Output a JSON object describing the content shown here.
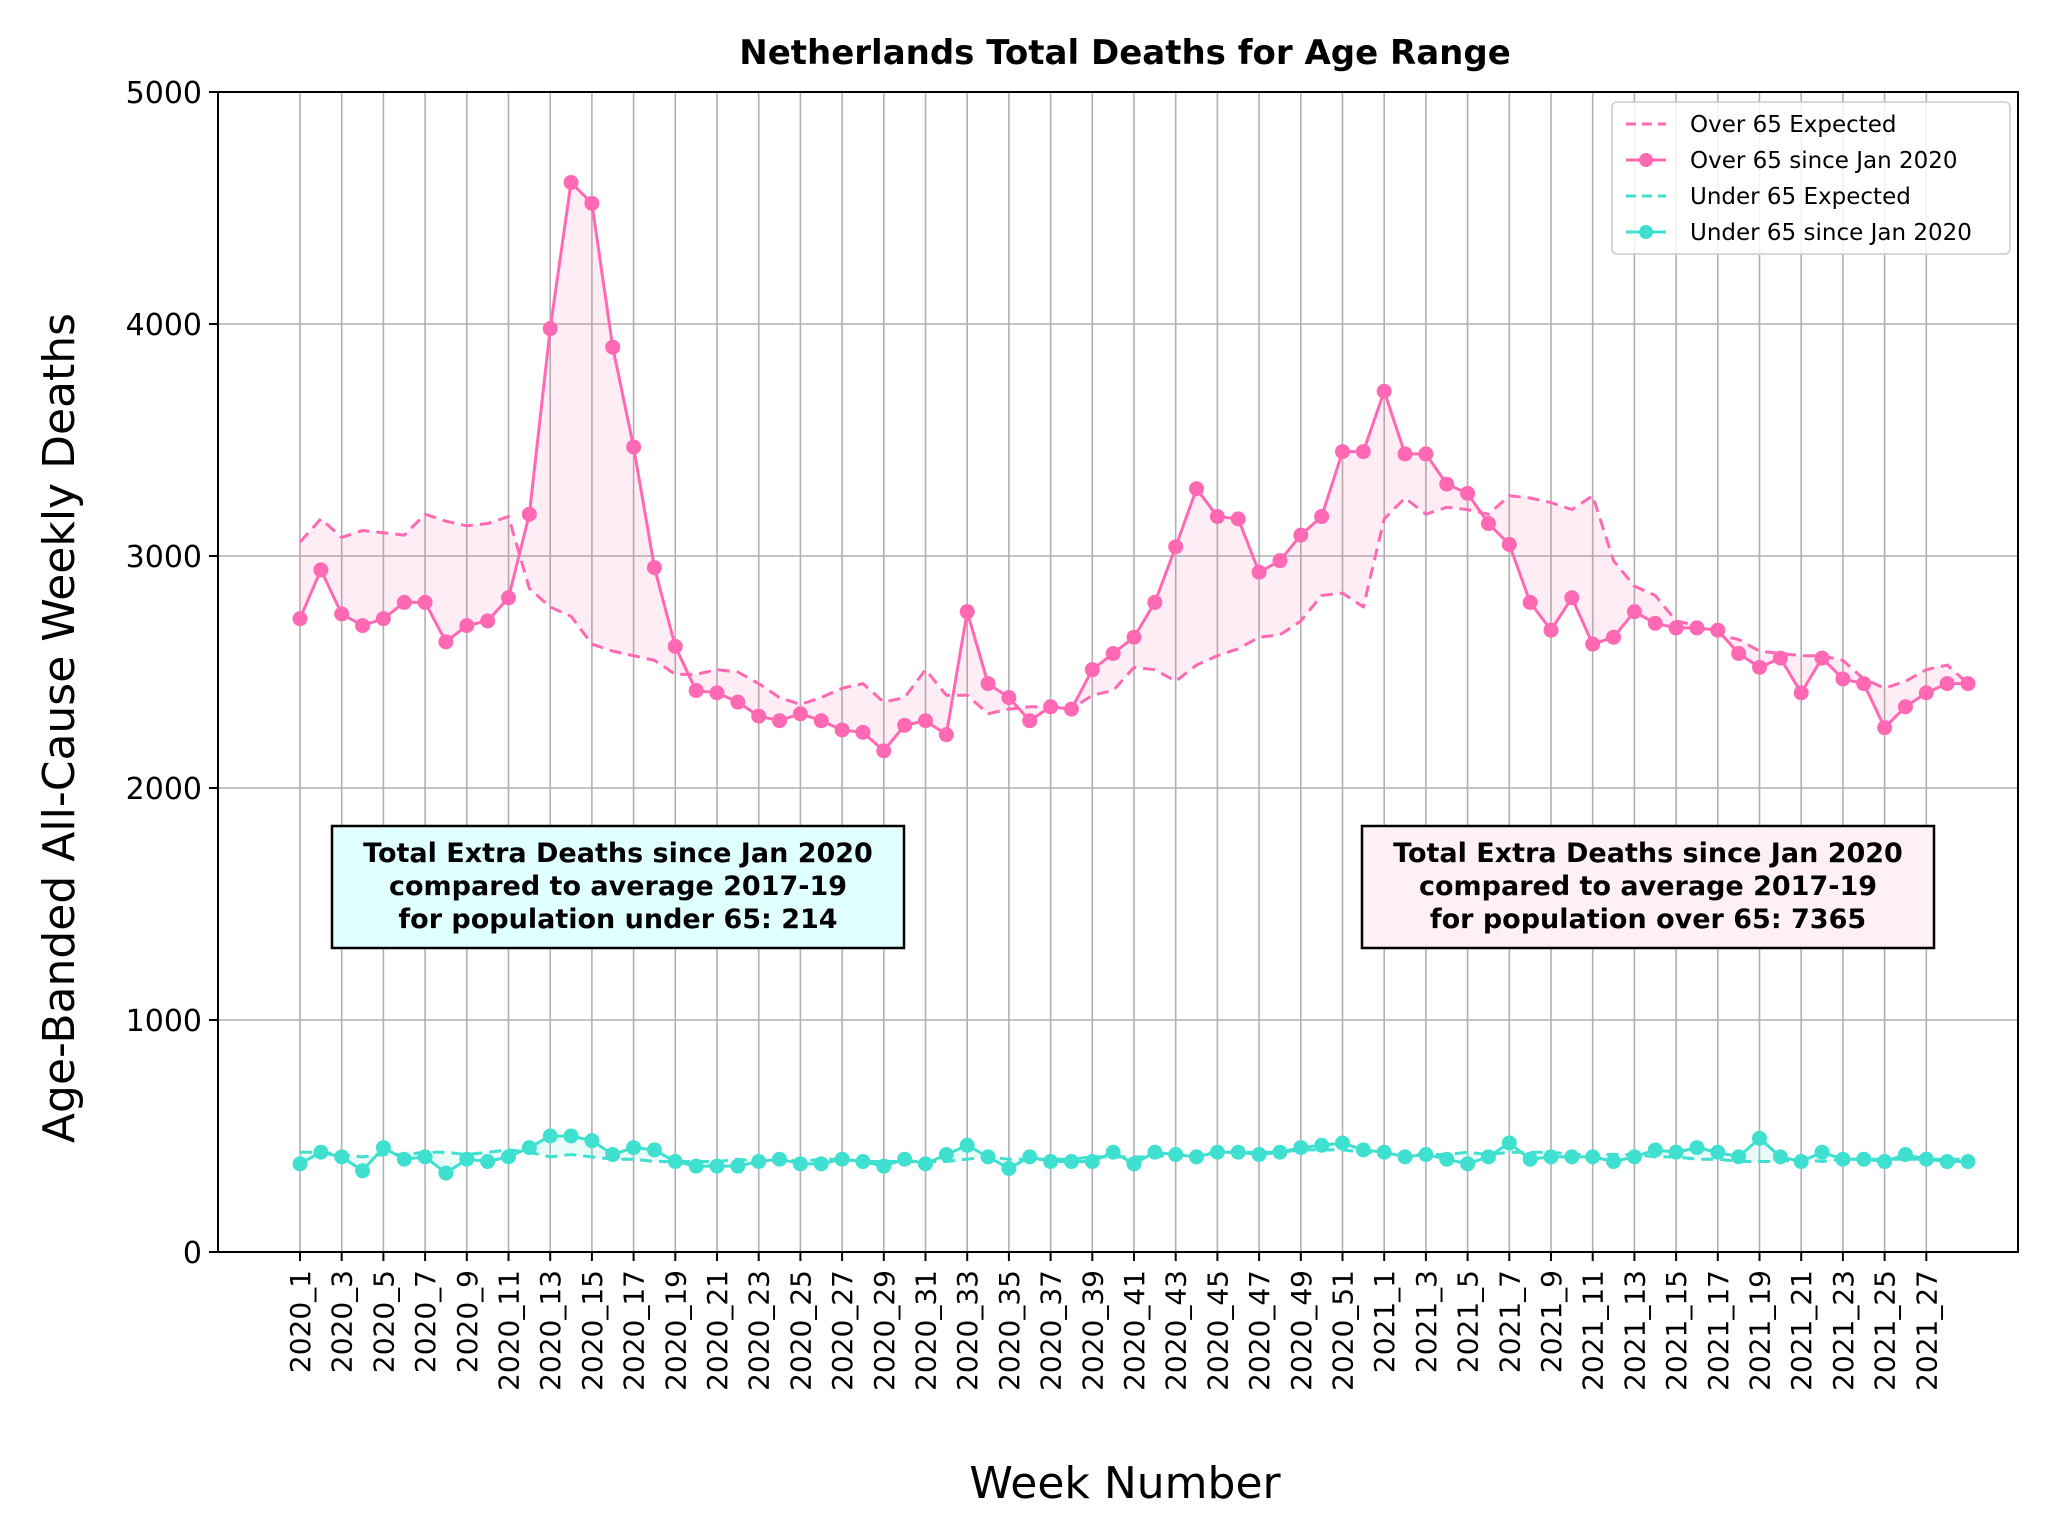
{
  "chart_data": {
    "type": "line",
    "title": "Netherlands Total Deaths for Age Range",
    "xlabel": "Week Number",
    "ylabel": "Age-Banded All-Cause Weekly Deaths",
    "ylim": [
      0,
      5000
    ],
    "yticks": [
      0,
      1000,
      2000,
      3000,
      4000,
      5000
    ],
    "grid": true,
    "legend_position": "top-right",
    "categories": [
      "2020_1",
      "2020_2",
      "2020_3",
      "2020_4",
      "2020_5",
      "2020_6",
      "2020_7",
      "2020_8",
      "2020_9",
      "2020_10",
      "2020_11",
      "2020_12",
      "2020_13",
      "2020_14",
      "2020_15",
      "2020_16",
      "2020_17",
      "2020_18",
      "2020_19",
      "2020_20",
      "2020_21",
      "2020_22",
      "2020_23",
      "2020_24",
      "2020_25",
      "2020_26",
      "2020_27",
      "2020_28",
      "2020_29",
      "2020_30",
      "2020_31",
      "2020_32",
      "2020_33",
      "2020_34",
      "2020_35",
      "2020_36",
      "2020_37",
      "2020_38",
      "2020_39",
      "2020_40",
      "2020_41",
      "2020_42",
      "2020_43",
      "2020_44",
      "2020_45",
      "2020_46",
      "2020_47",
      "2020_48",
      "2020_49",
      "2020_50",
      "2020_51",
      "2020_52",
      "2021_1",
      "2021_2",
      "2021_3",
      "2021_4",
      "2021_5",
      "2021_6",
      "2021_7",
      "2021_8",
      "2021_9",
      "2021_10",
      "2021_11",
      "2021_12",
      "2021_13",
      "2021_14",
      "2021_15",
      "2021_16",
      "2021_17",
      "2021_18",
      "2021_19",
      "2021_20",
      "2021_21",
      "2021_22",
      "2021_23",
      "2021_24",
      "2021_25",
      "2021_26",
      "2021_27",
      "2021_28",
      "2021_29"
    ],
    "xtick_labels": [
      "2020_1",
      "2020_3",
      "2020_5",
      "2020_7",
      "2020_9",
      "2020_11",
      "2020_13",
      "2020_15",
      "2020_17",
      "2020_19",
      "2020_21",
      "2020_23",
      "2020_25",
      "2020_27",
      "2020_29",
      "2020_31",
      "2020_33",
      "2020_35",
      "2020_37",
      "2020_39",
      "2020_41",
      "2020_43",
      "2020_45",
      "2020_47",
      "2020_49",
      "2020_51",
      "2021_1",
      "2021_3",
      "2021_5",
      "2021_7",
      "2021_9",
      "2021_11",
      "2021_13",
      "2021_15",
      "2021_17",
      "2021_19",
      "2021_21",
      "2021_23",
      "2021_25",
      "2021_27"
    ],
    "series": [
      {
        "name": "Over 65 Expected",
        "color": "#ff69b4",
        "style": "dashed",
        "values": [
          3060,
          3160,
          3080,
          3110,
          3100,
          3090,
          3180,
          3150,
          3130,
          3140,
          3170,
          2860,
          2780,
          2740,
          2620,
          2590,
          2570,
          2550,
          2490,
          2490,
          2510,
          2500,
          2450,
          2390,
          2360,
          2390,
          2430,
          2450,
          2370,
          2390,
          2510,
          2400,
          2400,
          2320,
          2340,
          2350,
          2350,
          2340,
          2400,
          2420,
          2520,
          2510,
          2460,
          2530,
          2570,
          2600,
          2650,
          2660,
          2720,
          2830,
          2840,
          2780,
          3160,
          3250,
          3180,
          3210,
          3200,
          3180,
          3260,
          3250,
          3230,
          3200,
          3260,
          2980,
          2870,
          2830,
          2720,
          2700,
          2660,
          2640,
          2590,
          2580,
          2570,
          2570,
          2550,
          2470,
          2430,
          2460,
          2510,
          2530,
          2450
        ]
      },
      {
        "name": "Over 65 since Jan 2020",
        "color": "#ff69b4",
        "style": "solid-marker",
        "values": [
          2730,
          2940,
          2750,
          2700,
          2730,
          2800,
          2800,
          2630,
          2700,
          2720,
          2820,
          3180,
          3980,
          4610,
          4520,
          3900,
          3470,
          2950,
          2610,
          2420,
          2410,
          2370,
          2310,
          2290,
          2320,
          2290,
          2250,
          2240,
          2160,
          2270,
          2290,
          2230,
          2760,
          2450,
          2390,
          2290,
          2350,
          2340,
          2510,
          2580,
          2650,
          2800,
          3040,
          3290,
          3170,
          3160,
          2930,
          2980,
          3090,
          3170,
          3450,
          3450,
          3710,
          3440,
          3440,
          3310,
          3270,
          3140,
          3050,
          2800,
          2680,
          2820,
          2620,
          2650,
          2760,
          2710,
          2690,
          2690,
          2680,
          2580,
          2520,
          2560,
          2410,
          2560,
          2470,
          2450,
          2260,
          2350,
          2410,
          2450,
          2450
        ]
      },
      {
        "name": "Under 65 Expected",
        "color": "#40e0d0",
        "style": "dashed",
        "values": [
          430,
          430,
          420,
          410,
          420,
          420,
          430,
          430,
          420,
          430,
          440,
          430,
          410,
          420,
          410,
          400,
          400,
          390,
          390,
          390,
          390,
          400,
          390,
          400,
          390,
          400,
          400,
          390,
          390,
          390,
          390,
          390,
          400,
          410,
          400,
          400,
          400,
          400,
          410,
          410,
          410,
          410,
          420,
          420,
          430,
          430,
          430,
          430,
          440,
          440,
          440,
          430,
          430,
          420,
          420,
          420,
          430,
          420,
          430,
          430,
          430,
          420,
          420,
          420,
          420,
          410,
          410,
          400,
          400,
          390,
          390,
          390,
          400,
          390,
          400,
          400,
          400,
          400,
          400,
          400,
          400
        ]
      },
      {
        "name": "Under 65 since Jan 2020",
        "color": "#40e0d0",
        "style": "solid-marker",
        "values": [
          380,
          430,
          410,
          350,
          450,
          400,
          410,
          340,
          400,
          390,
          410,
          450,
          500,
          500,
          480,
          420,
          450,
          440,
          390,
          370,
          370,
          370,
          390,
          400,
          380,
          380,
          400,
          390,
          370,
          400,
          380,
          420,
          460,
          410,
          360,
          410,
          390,
          390,
          390,
          430,
          380,
          430,
          420,
          410,
          430,
          430,
          420,
          430,
          450,
          460,
          470,
          440,
          430,
          410,
          420,
          400,
          380,
          410,
          470,
          400,
          410,
          410,
          410,
          390,
          410,
          440,
          430,
          450,
          430,
          410,
          490,
          410,
          390,
          430,
          400,
          400,
          390,
          420,
          400,
          390,
          390
        ]
      }
    ],
    "annotations": [
      {
        "side": "left",
        "background": "#e0ffff",
        "lines": [
          "Total Extra Deaths since Jan 2020",
          "compared to average 2017-19",
          "for population under 65: 214"
        ]
      },
      {
        "side": "right",
        "background": "#fff0f5",
        "lines": [
          "Total Extra Deaths since Jan 2020",
          "compared to average 2017-19",
          "for population over 65: 7365"
        ]
      }
    ]
  }
}
